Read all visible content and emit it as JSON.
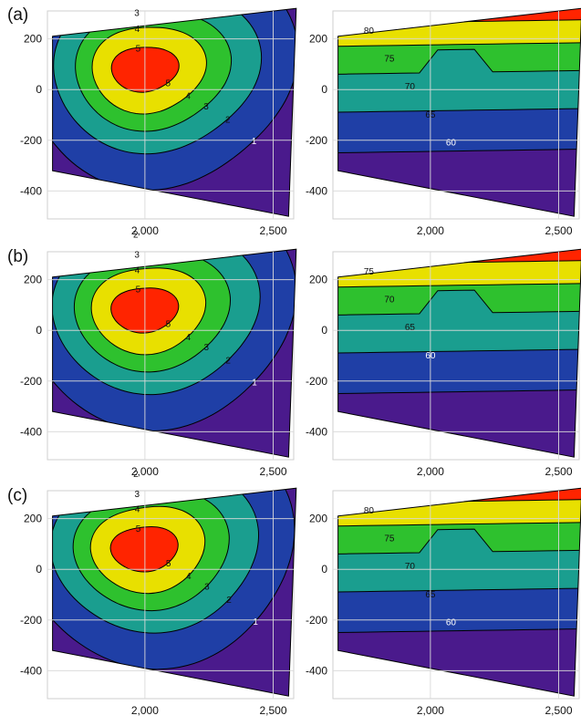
{
  "figure": {
    "panel_labels": [
      "(a)",
      "(b)",
      "(c)"
    ]
  },
  "colors": {
    "level_bands": [
      "#4a1a8c",
      "#1f3fa6",
      "#1a9e8f",
      "#2ec12e",
      "#e8e000",
      "#ff2400"
    ],
    "contour": "#000000",
    "grid": "#d9d9d9"
  },
  "chart_data": [
    {
      "type": "heatmap",
      "subtype": "filled-contour",
      "panel": "(a)",
      "position": "left",
      "xlim": [
        1620,
        2580
      ],
      "ylim": [
        -510,
        310
      ],
      "x_ticks": [
        2000,
        2500
      ],
      "x_tick_labels": [
        "2,000",
        "2,500"
      ],
      "y_ticks": [
        200,
        0,
        -200,
        -400
      ],
      "y_tick_labels": [
        "200",
        "0",
        "-200",
        "-400"
      ],
      "contour_levels": [
        "1",
        "2",
        "3",
        "4",
        "5"
      ],
      "grid": true
    },
    {
      "type": "heatmap",
      "subtype": "filled-contour",
      "panel": "(a)",
      "position": "right",
      "xlim": [
        1620,
        2580
      ],
      "ylim": [
        -510,
        310
      ],
      "x_ticks": [
        2000,
        2500
      ],
      "x_tick_labels": [
        "2,000",
        "2,500"
      ],
      "y_ticks": [
        200,
        0,
        -200,
        -400
      ],
      "y_tick_labels": [
        "200",
        "0",
        "-200",
        "-400"
      ],
      "contour_levels": [
        "60",
        "65",
        "70",
        "75",
        "80"
      ],
      "grid": true
    },
    {
      "type": "heatmap",
      "subtype": "filled-contour",
      "panel": "(b)",
      "position": "left",
      "xlim": [
        1620,
        2580
      ],
      "ylim": [
        -510,
        310
      ],
      "x_ticks": [
        2000,
        2500
      ],
      "x_tick_labels": [
        "2,000",
        "2,500"
      ],
      "y_ticks": [
        200,
        0,
        -200,
        -400
      ],
      "y_tick_labels": [
        "200",
        "0",
        "-200",
        "-400"
      ],
      "contour_levels": [
        "1",
        "2",
        "3",
        "4",
        "5"
      ],
      "grid": true
    },
    {
      "type": "heatmap",
      "subtype": "filled-contour",
      "panel": "(b)",
      "position": "right",
      "xlim": [
        1620,
        2580
      ],
      "ylim": [
        -510,
        310
      ],
      "x_ticks": [
        2000,
        2500
      ],
      "x_tick_labels": [
        "2,000",
        "2,500"
      ],
      "y_ticks": [
        200,
        0,
        -200,
        -400
      ],
      "y_tick_labels": [
        "200",
        "0",
        "-200",
        "-400"
      ],
      "contour_levels": [
        "60",
        "65",
        "70",
        "75"
      ],
      "grid": true
    },
    {
      "type": "heatmap",
      "subtype": "filled-contour",
      "panel": "(c)",
      "position": "left",
      "xlim": [
        1620,
        2580
      ],
      "ylim": [
        -510,
        310
      ],
      "x_ticks": [
        2000,
        2500
      ],
      "x_tick_labels": [
        "2,000",
        "2,500"
      ],
      "y_ticks": [
        200,
        0,
        -200,
        -400
      ],
      "y_tick_labels": [
        "200",
        "0",
        "-200",
        "-400"
      ],
      "contour_levels": [
        "1",
        "2",
        "3",
        "4",
        "5"
      ],
      "grid": true
    },
    {
      "type": "heatmap",
      "subtype": "filled-contour",
      "panel": "(c)",
      "position": "right",
      "xlim": [
        1620,
        2580
      ],
      "ylim": [
        -510,
        310
      ],
      "x_ticks": [
        2000,
        2500
      ],
      "x_tick_labels": [
        "2,000",
        "2,500"
      ],
      "y_ticks": [
        200,
        0,
        -200,
        -400
      ],
      "y_tick_labels": [
        "200",
        "0",
        "-200",
        "-400"
      ],
      "contour_levels": [
        "60",
        "65",
        "70",
        "75",
        "80"
      ],
      "grid": true
    }
  ]
}
